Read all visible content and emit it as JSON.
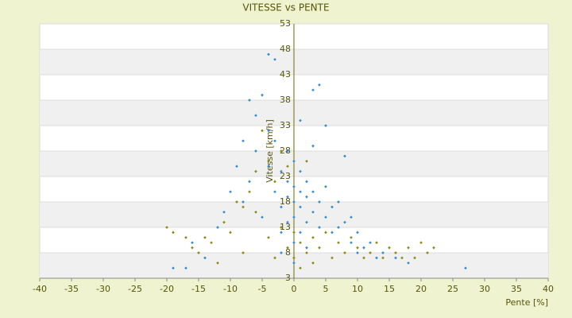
{
  "chart_data": {
    "type": "scatter",
    "title": "VITESSE vs PENTE",
    "x_label": "Pente [%]",
    "y_label": "Vitesse [km/h]",
    "xlim": [
      -40,
      40
    ],
    "xticks": [
      -40,
      -35,
      -30,
      -25,
      -20,
      -15,
      -10,
      -5,
      0,
      5,
      10,
      15,
      20,
      25,
      30,
      35,
      40
    ],
    "ylim": [
      3,
      53
    ],
    "yticks": [
      3,
      8,
      13,
      18,
      23,
      28,
      33,
      38,
      43,
      48,
      53
    ],
    "grid": true,
    "series": [
      {
        "color": "#2f8ad8",
        "x": [
          -19,
          -17,
          -16,
          -14,
          -12,
          -11,
          -10,
          -9,
          -8,
          -7,
          -7,
          -6,
          -6,
          -5,
          -5,
          -4,
          -4,
          -3,
          -3,
          -3,
          -2,
          -2,
          -2,
          -1,
          -1,
          -1,
          -1,
          0,
          0,
          0,
          0,
          0,
          0,
          1,
          1,
          1,
          1,
          1,
          2,
          2,
          2,
          2,
          3,
          3,
          3,
          4,
          4,
          4,
          5,
          5,
          5,
          6,
          6,
          7,
          7,
          8,
          8,
          9,
          9,
          10,
          10,
          11,
          12,
          13,
          14,
          16,
          18,
          27,
          -4,
          -8,
          3,
          -2
        ],
        "values": [
          5,
          5,
          10,
          7,
          13,
          16,
          20,
          25,
          18,
          38,
          22,
          28,
          35,
          15,
          39,
          47,
          25,
          46,
          30,
          20,
          24,
          17,
          12,
          28,
          22,
          19,
          14,
          26,
          21,
          18,
          15,
          10,
          6,
          24,
          20,
          17,
          12,
          34,
          22,
          19,
          14,
          9,
          20,
          16,
          29,
          18,
          13,
          41,
          33,
          21,
          15,
          17,
          12,
          18,
          13,
          27,
          14,
          15,
          10,
          12,
          8,
          9,
          10,
          7,
          8,
          7,
          6,
          5,
          32,
          30,
          40,
          8
        ]
      },
      {
        "color": "#8a8a12",
        "x": [
          -20,
          -19,
          -17,
          -16,
          -15,
          -14,
          -13,
          -12,
          -11,
          -10,
          -9,
          -8,
          -7,
          -6,
          -5,
          -4,
          -4,
          -3,
          -3,
          -2,
          -2,
          -1,
          -1,
          0,
          0,
          1,
          1,
          2,
          3,
          3,
          4,
          5,
          6,
          7,
          8,
          9,
          10,
          11,
          12,
          13,
          14,
          15,
          16,
          17,
          18,
          19,
          20,
          21,
          22,
          -8,
          -6,
          2
        ],
        "values": [
          13,
          12,
          11,
          9,
          8,
          11,
          10,
          6,
          14,
          12,
          18,
          8,
          20,
          16,
          32,
          11,
          26,
          7,
          22,
          28,
          13,
          9,
          25,
          7,
          12,
          5,
          10,
          8,
          6,
          11,
          9,
          12,
          7,
          10,
          8,
          11,
          9,
          7,
          8,
          10,
          7,
          9,
          8,
          7,
          9,
          7,
          10,
          8,
          9,
          17,
          24,
          26
        ]
      }
    ]
  }
}
